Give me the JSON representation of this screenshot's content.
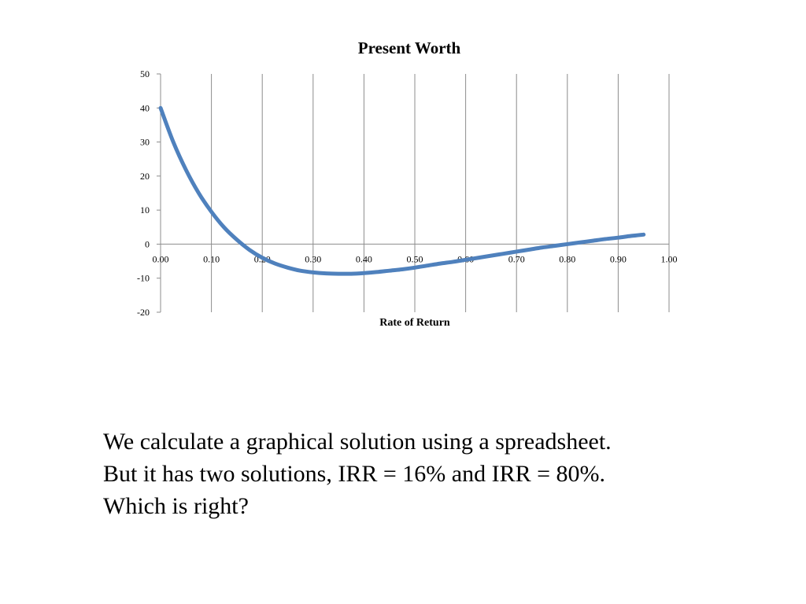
{
  "chart_data": {
    "type": "line",
    "title": "Present Worth",
    "xlabel": "Rate of Return",
    "ylabel": "",
    "xlim": [
      0,
      1
    ],
    "ylim": [
      -20,
      50
    ],
    "x_ticks": [
      "0.00",
      "0.10",
      "0.20",
      "0.30",
      "0.40",
      "0.50",
      "0.60",
      "0.70",
      "0.80",
      "0.90",
      "1.00"
    ],
    "y_ticks": [
      "50",
      "40",
      "30",
      "20",
      "10",
      "0",
      "-10",
      "-20"
    ],
    "grid": "vertical",
    "legend": "none",
    "series": [
      {
        "color": "#4f81bd",
        "x": [
          0.0,
          0.025,
          0.05,
          0.075,
          0.1,
          0.125,
          0.15,
          0.175,
          0.2,
          0.225,
          0.25,
          0.275,
          0.3,
          0.325,
          0.35,
          0.375,
          0.4,
          0.425,
          0.45,
          0.475,
          0.5,
          0.525,
          0.55,
          0.575,
          0.6,
          0.625,
          0.65,
          0.675,
          0.7,
          0.725,
          0.75,
          0.775,
          0.8,
          0.825,
          0.85,
          0.875,
          0.9,
          0.925,
          0.95
        ],
        "y": [
          40.0,
          30.0,
          21.8,
          15.0,
          9.5,
          4.9,
          1.3,
          -1.7,
          -4.0,
          -5.7,
          -6.9,
          -7.8,
          -8.3,
          -8.6,
          -8.7,
          -8.7,
          -8.5,
          -8.2,
          -7.8,
          -7.4,
          -6.9,
          -6.3,
          -5.7,
          -5.2,
          -4.6,
          -4.0,
          -3.4,
          -2.8,
          -2.2,
          -1.6,
          -1.0,
          -0.5,
          0.0,
          0.5,
          1.0,
          1.5,
          1.9,
          2.4,
          2.8
        ]
      }
    ]
  },
  "caption": {
    "line1": "We calculate a graphical solution using a spreadsheet.",
    "line2": "But it has two solutions, IRR = 16% and IRR = 80%.",
    "line3": "Which is right?"
  }
}
